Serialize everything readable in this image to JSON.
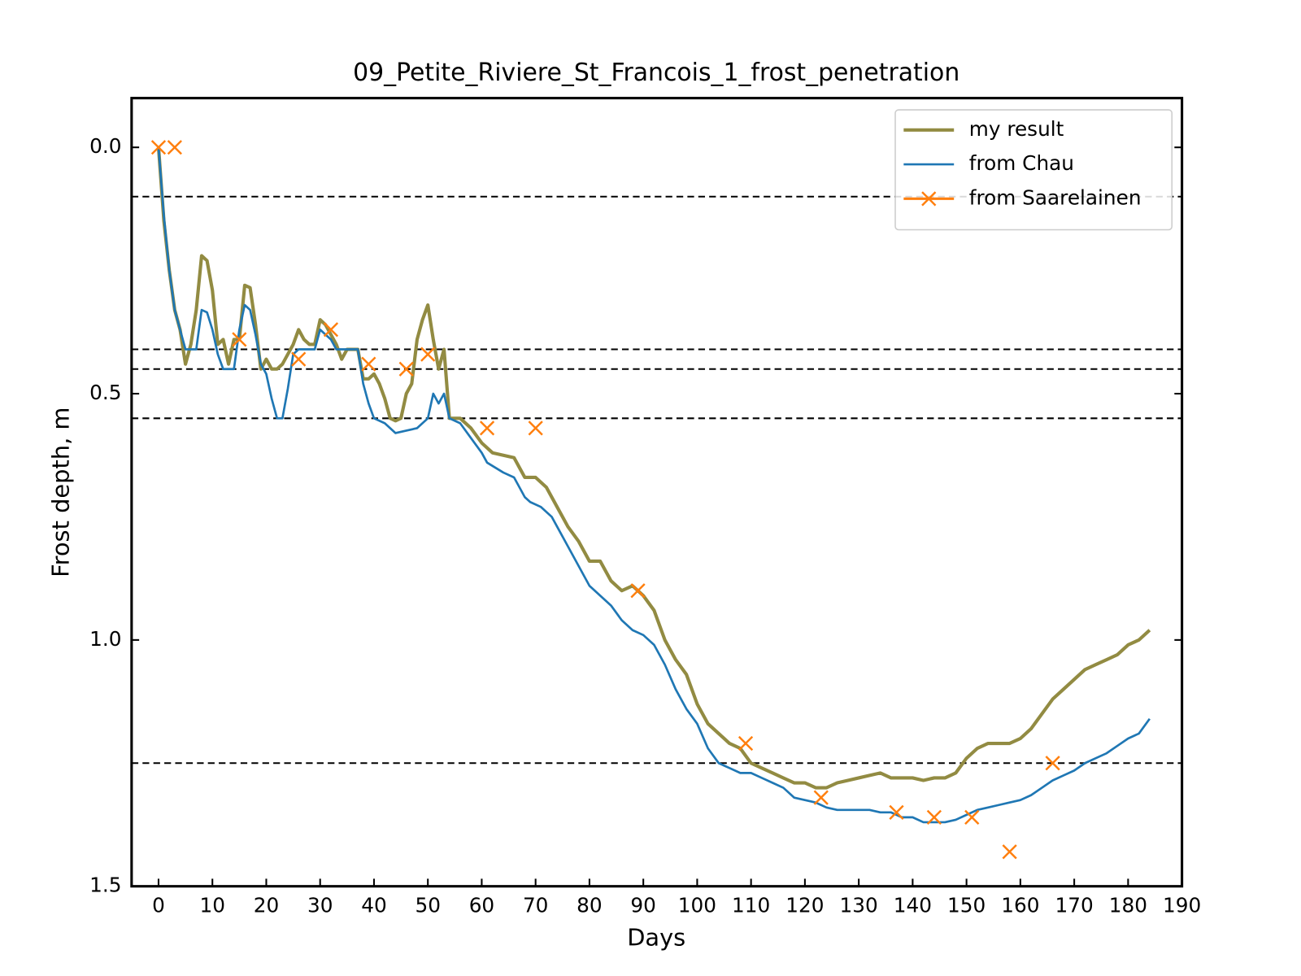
{
  "chart_data": {
    "type": "line",
    "title": "09_Petite_Riviere_St_Francois_1_frost_penetration",
    "xlabel": "Days",
    "ylabel": "Frost depth, m",
    "xlim": [
      -5,
      190
    ],
    "ylim": [
      1.5,
      -0.1
    ],
    "xticks": [
      0,
      10,
      20,
      30,
      40,
      50,
      60,
      70,
      80,
      90,
      100,
      110,
      120,
      130,
      140,
      150,
      160,
      170,
      180,
      190
    ],
    "yticks": [
      {
        "value": 0,
        "label": "0.0"
      },
      0.5,
      {
        "value": 1,
        "label": "1.0"
      },
      1.5
    ],
    "hlines": [
      0.1,
      0.41,
      0.45,
      0.55,
      1.25
    ],
    "legend": "upper right",
    "series": [
      {
        "name": "my result",
        "color": "#928b42",
        "linewidth": 4,
        "x": [
          0,
          1,
          2,
          3,
          4,
          5,
          6,
          7,
          8,
          9,
          10,
          11,
          12,
          13,
          14,
          15,
          16,
          17,
          18,
          19,
          20,
          21,
          22,
          23,
          24,
          25,
          26,
          27,
          28,
          29,
          30,
          31,
          32,
          33,
          34,
          35,
          36,
          37,
          38,
          39,
          40,
          41,
          42,
          43,
          44,
          45,
          46,
          47,
          48,
          49,
          50,
          51,
          52,
          53,
          54,
          56,
          58,
          60,
          62,
          64,
          66,
          68,
          70,
          72,
          74,
          76,
          78,
          80,
          82,
          84,
          86,
          88,
          90,
          92,
          94,
          96,
          98,
          100,
          102,
          104,
          106,
          108,
          110,
          112,
          114,
          116,
          118,
          120,
          122,
          124,
          126,
          128,
          130,
          132,
          134,
          136,
          138,
          140,
          142,
          144,
          146,
          148,
          150,
          152,
          154,
          156,
          158,
          160,
          162,
          164,
          166,
          168,
          170,
          172,
          174,
          176,
          178,
          180,
          182,
          184
        ],
        "values": [
          0,
          0.15,
          0.25,
          0.33,
          0.37,
          0.44,
          0.4,
          0.33,
          0.22,
          0.23,
          0.29,
          0.4,
          0.39,
          0.44,
          0.39,
          0.39,
          0.28,
          0.285,
          0.36,
          0.45,
          0.43,
          0.45,
          0.45,
          0.44,
          0.42,
          0.4,
          0.37,
          0.39,
          0.4,
          0.4,
          0.35,
          0.36,
          0.38,
          0.4,
          0.43,
          0.41,
          0.41,
          0.41,
          0.47,
          0.47,
          0.46,
          0.48,
          0.51,
          0.55,
          0.555,
          0.55,
          0.5,
          0.48,
          0.39,
          0.35,
          0.32,
          0.39,
          0.45,
          0.41,
          0.55,
          0.55,
          0.57,
          0.6,
          0.62,
          0.625,
          0.63,
          0.67,
          0.67,
          0.69,
          0.73,
          0.77,
          0.8,
          0.84,
          0.84,
          0.88,
          0.9,
          0.89,
          0.91,
          0.94,
          1.0,
          1.04,
          1.07,
          1.13,
          1.17,
          1.19,
          1.21,
          1.22,
          1.25,
          1.26,
          1.27,
          1.28,
          1.29,
          1.29,
          1.3,
          1.3,
          1.29,
          1.285,
          1.28,
          1.275,
          1.27,
          1.28,
          1.28,
          1.28,
          1.285,
          1.28,
          1.28,
          1.27,
          1.24,
          1.22,
          1.21,
          1.21,
          1.21,
          1.2,
          1.18,
          1.15,
          1.12,
          1.1,
          1.08,
          1.06,
          1.05,
          1.04,
          1.03,
          1.01,
          1.0,
          0.98
        ]
      },
      {
        "name": "from Chau",
        "color": "#1f77b4",
        "linewidth": 2.6,
        "x": [
          0,
          1,
          2,
          3,
          4,
          5,
          6,
          7,
          8,
          9,
          10,
          11,
          12,
          13,
          14,
          15,
          16,
          17,
          18,
          19,
          20,
          21,
          22,
          23,
          24,
          25,
          26,
          27,
          28,
          29,
          30,
          31,
          32,
          33,
          34,
          35,
          36,
          37,
          38,
          39,
          40,
          42,
          44,
          46,
          48,
          50,
          51,
          52,
          53,
          54,
          56,
          58,
          60,
          61,
          64,
          66,
          68,
          69,
          71,
          73,
          74,
          76,
          78,
          80,
          82,
          84,
          86,
          88,
          90,
          92,
          94,
          96,
          98,
          100,
          102,
          104,
          106,
          108,
          110,
          112,
          114,
          116,
          118,
          120,
          122,
          124,
          126,
          128,
          130,
          132,
          134,
          136,
          138,
          140,
          142,
          144,
          146,
          148,
          150,
          152,
          154,
          156,
          158,
          160,
          162,
          164,
          166,
          168,
          170,
          172,
          174,
          176,
          178,
          180,
          182,
          184
        ],
        "values": [
          0,
          0.14,
          0.25,
          0.33,
          0.37,
          0.41,
          0.41,
          0.41,
          0.33,
          0.335,
          0.37,
          0.42,
          0.45,
          0.45,
          0.45,
          0.37,
          0.32,
          0.33,
          0.38,
          0.44,
          0.46,
          0.51,
          0.55,
          0.55,
          0.49,
          0.42,
          0.41,
          0.41,
          0.41,
          0.41,
          0.37,
          0.38,
          0.39,
          0.41,
          0.41,
          0.41,
          0.41,
          0.41,
          0.48,
          0.52,
          0.55,
          0.56,
          0.58,
          0.575,
          0.57,
          0.55,
          0.5,
          0.52,
          0.5,
          0.55,
          0.56,
          0.59,
          0.62,
          0.64,
          0.66,
          0.67,
          0.71,
          0.72,
          0.73,
          0.75,
          0.77,
          0.81,
          0.85,
          0.89,
          0.91,
          0.93,
          0.96,
          0.98,
          0.99,
          1.01,
          1.05,
          1.1,
          1.14,
          1.17,
          1.22,
          1.25,
          1.26,
          1.27,
          1.27,
          1.28,
          1.29,
          1.3,
          1.32,
          1.325,
          1.33,
          1.34,
          1.345,
          1.345,
          1.345,
          1.345,
          1.35,
          1.35,
          1.36,
          1.36,
          1.37,
          1.37,
          1.37,
          1.365,
          1.355,
          1.345,
          1.34,
          1.335,
          1.33,
          1.325,
          1.315,
          1.3,
          1.285,
          1.275,
          1.265,
          1.25,
          1.24,
          1.23,
          1.215,
          1.2,
          1.19,
          1.16
        ]
      },
      {
        "name": "from Saarelainen",
        "color": "#ff7f0e",
        "marker": "x",
        "x": [
          0,
          3,
          15,
          26,
          32,
          39,
          46,
          50,
          61,
          70,
          89,
          109,
          123,
          137,
          144,
          151,
          158,
          166
        ],
        "values": [
          0,
          0,
          0.39,
          0.43,
          0.37,
          0.44,
          0.45,
          0.42,
          0.57,
          0.57,
          0.9,
          1.21,
          1.32,
          1.35,
          1.36,
          1.36,
          1.43,
          1.25
        ]
      }
    ]
  }
}
